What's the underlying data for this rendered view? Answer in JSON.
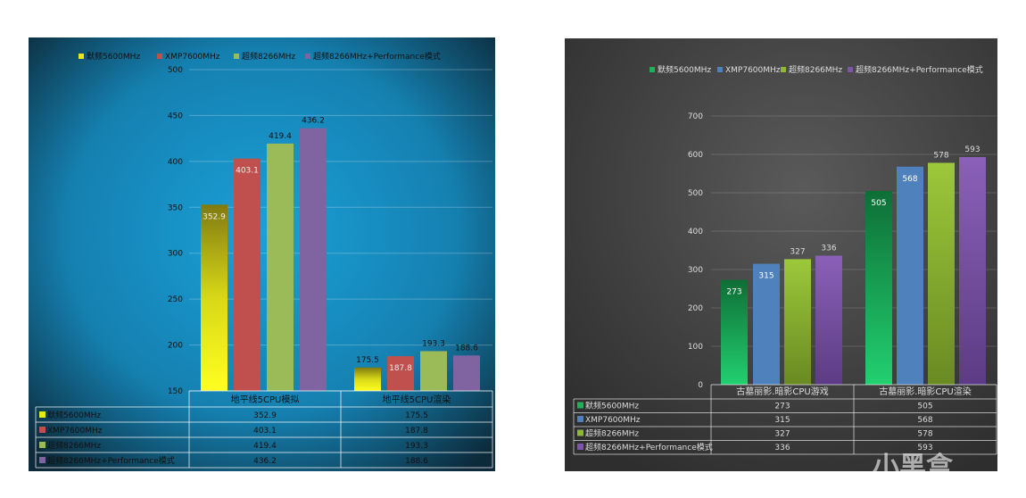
{
  "watermark": "小黑盒",
  "chart_data": [
    {
      "type": "bar",
      "title": "",
      "categories": [
        "地平线5CPU模拟",
        "地平线5CPU渲染"
      ],
      "series": [
        {
          "name": "默频5600MHz",
          "values": [
            352.9,
            175.5
          ],
          "color": "#e8e814"
        },
        {
          "name": "XMP7600MHz",
          "values": [
            403.1,
            187.8
          ],
          "color": "#c0504d"
        },
        {
          "name": "超频8266MHz",
          "values": [
            419.4,
            193.3
          ],
          "color": "#9bbb59"
        },
        {
          "name": "超频8266MHz+Performance模式",
          "values": [
            436.2,
            188.6
          ],
          "color": "#8064a2"
        }
      ],
      "ylim": [
        150,
        500
      ],
      "yticks": [
        "150",
        "200",
        "250",
        "300",
        "350",
        "400",
        "450",
        "500"
      ],
      "value_labels": [
        [
          "352.9",
          "175.5"
        ],
        [
          "403.1",
          "187.8"
        ],
        [
          "419.4",
          "193.3"
        ],
        [
          "436.2",
          "188.6"
        ]
      ],
      "legend": "top",
      "data_table": true,
      "grid": true
    },
    {
      "type": "bar",
      "title": "",
      "categories": [
        "古墓丽影.暗影CPU游戏",
        "古墓丽影.暗影CPU渲染"
      ],
      "series": [
        {
          "name": "默频5600MHz",
          "values": [
            273,
            505
          ],
          "color": "#1fb05c"
        },
        {
          "name": "XMP7600MHz",
          "values": [
            315,
            568
          ],
          "color": "#4f81bd"
        },
        {
          "name": "超频8266MHz",
          "values": [
            327,
            578
          ],
          "color": "#8fb832"
        },
        {
          "name": "超频8266MHz+Performance模式",
          "values": [
            336,
            593
          ],
          "color": "#7d56a8"
        }
      ],
      "ylim": [
        0,
        700
      ],
      "yticks": [
        "0",
        "100",
        "200",
        "300",
        "400",
        "500",
        "600",
        "700"
      ],
      "value_labels": [
        [
          "273",
          "505"
        ],
        [
          "315",
          "568"
        ],
        [
          "327",
          "578"
        ],
        [
          "336",
          "593"
        ]
      ],
      "legend": "top",
      "data_table": true,
      "grid": true
    }
  ]
}
